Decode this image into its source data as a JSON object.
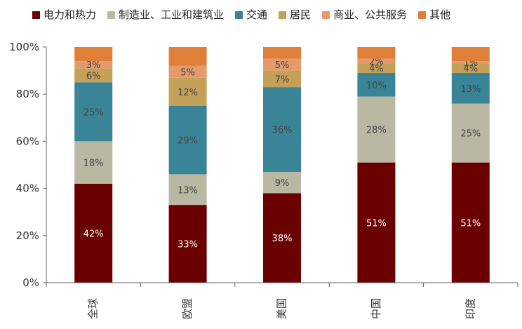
{
  "chart_data": {
    "type": "bar",
    "stacked": true,
    "categories": [
      "全球",
      "欧盟",
      "美国",
      "中国",
      "印度"
    ],
    "series": [
      {
        "name": "电力和热力",
        "color": "#6b0000",
        "values": [
          42,
          33,
          38,
          51,
          51
        ],
        "labels": [
          "42%",
          "33%",
          "38%",
          "51%",
          "51%"
        ],
        "label_color": "#ffffff"
      },
      {
        "name": "制造业、工业和建筑业",
        "color": "#b9b8a2",
        "values": [
          18,
          13,
          9,
          28,
          25
        ],
        "labels": [
          "18%",
          "13%",
          "9%",
          "28%",
          "25%"
        ],
        "label_color": "#444444"
      },
      {
        "name": "交通",
        "color": "#3a8497",
        "values": [
          25,
          29,
          36,
          10,
          13
        ],
        "labels": [
          "25%",
          "29%",
          "36%",
          "10%",
          "13%"
        ],
        "label_color": "#444444"
      },
      {
        "name": "居民",
        "color": "#c4a059",
        "values": [
          6,
          12,
          7,
          4,
          4
        ],
        "labels": [
          "6%",
          "12%",
          "7%",
          "4%",
          "4%"
        ],
        "label_color": "#444444"
      },
      {
        "name": "商业、公共服务",
        "color": "#e49a6c",
        "values": [
          3,
          5,
          5,
          2,
          1
        ],
        "labels": [
          "3%",
          "5%",
          "5%",
          "2%",
          "1%"
        ],
        "label_color": "#444444"
      },
      {
        "name": "其他",
        "color": "#e07f37",
        "values": [
          6,
          8,
          5,
          5,
          6
        ],
        "labels": [
          "",
          "",
          "",
          "",
          ""
        ],
        "label_color": "#444444"
      }
    ],
    "ylim": [
      0,
      100
    ],
    "yticks": [
      "0%",
      "20%",
      "40%",
      "60%",
      "80%",
      "100%"
    ],
    "ytick_values": [
      0,
      20,
      40,
      60,
      80,
      100
    ],
    "legend_position": "top",
    "grid": false
  }
}
